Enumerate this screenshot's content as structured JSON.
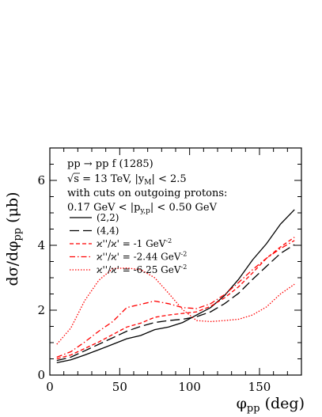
{
  "chart_data": {
    "type": "line",
    "xlabel": "φ_pp (deg)",
    "ylabel": "dσ/dφ_pp (μb)",
    "xlim": [
      0,
      180
    ],
    "ylim": [
      0,
      7
    ],
    "x_ticks": [
      0,
      50,
      100,
      150
    ],
    "y_ticks": [
      0,
      2,
      4,
      6
    ],
    "grid": false,
    "legend_position": "top-left",
    "annotations": [
      "pp → pp f (1285)",
      "√s = 13 TeV,  |y_M| < 2.5",
      "with cuts on outgoing protons:",
      "0.17 GeV < |p_y,p| < 0.50 GeV"
    ],
    "series": [
      {
        "name": "(2,2)",
        "color": "#000000",
        "style": "solid",
        "x": [
          5,
          15,
          25,
          35,
          45,
          55,
          65,
          75,
          85,
          95,
          105,
          115,
          125,
          135,
          145,
          155,
          165,
          175
        ],
        "values": [
          0.38,
          0.47,
          0.62,
          0.78,
          0.95,
          1.12,
          1.22,
          1.4,
          1.48,
          1.62,
          1.85,
          2.08,
          2.45,
          2.95,
          3.55,
          4.05,
          4.65,
          5.1
        ]
      },
      {
        "name": "(4,4)",
        "color": "#000000",
        "style": "longdash",
        "x": [
          5,
          15,
          25,
          35,
          45,
          55,
          65,
          75,
          85,
          95,
          105,
          115,
          125,
          135,
          145,
          155,
          165,
          175
        ],
        "values": [
          0.45,
          0.55,
          0.75,
          0.95,
          1.15,
          1.35,
          1.5,
          1.62,
          1.68,
          1.72,
          1.8,
          1.95,
          2.2,
          2.52,
          2.95,
          3.35,
          3.75,
          4.02
        ]
      },
      {
        "name": "ϰ''/ϰ' = -1 GeV^-2",
        "color": "#ff0000",
        "style": "dashed",
        "x": [
          5,
          15,
          25,
          35,
          45,
          55,
          65,
          75,
          85,
          95,
          105,
          115,
          125,
          135,
          145,
          155,
          165,
          175
        ],
        "values": [
          0.5,
          0.62,
          0.82,
          1.02,
          1.25,
          1.48,
          1.6,
          1.78,
          1.85,
          1.9,
          1.95,
          2.12,
          2.38,
          2.72,
          3.15,
          3.6,
          3.95,
          4.25
        ]
      },
      {
        "name": "ϰ''/ϰ' = -2.44 GeV^-2",
        "color": "#ff0000",
        "style": "dashdot",
        "x": [
          5,
          15,
          25,
          35,
          45,
          55,
          65,
          75,
          85,
          95,
          105,
          115,
          125,
          135,
          145,
          155,
          165,
          175
        ],
        "values": [
          0.55,
          0.72,
          1.02,
          1.35,
          1.65,
          2.08,
          2.18,
          2.28,
          2.2,
          2.08,
          2.05,
          2.2,
          2.48,
          2.85,
          3.25,
          3.6,
          3.9,
          4.15
        ]
      },
      {
        "name": "ϰ''/ϰ' = -6.25 GeV^-2",
        "color": "#ff0000",
        "style": "dotted",
        "x": [
          5,
          15,
          25,
          35,
          45,
          55,
          65,
          75,
          85,
          95,
          105,
          115,
          125,
          135,
          145,
          155,
          165,
          175
        ],
        "values": [
          0.95,
          1.45,
          2.3,
          2.92,
          3.28,
          3.3,
          3.25,
          3.0,
          2.52,
          2.02,
          1.68,
          1.65,
          1.68,
          1.72,
          1.85,
          2.1,
          2.5,
          2.8
        ]
      }
    ]
  },
  "labels": {
    "x_symbol": "φ",
    "x_subscript": "pp",
    "x_unit": " (deg)",
    "y_main": "dσ/dφ",
    "y_subscript": "pp",
    "y_unit": " (μb)",
    "annot": {
      "line1": "pp → pp f (1285)",
      "line2_sqrt": "√",
      "line2_a": "s = 13 TeV,  |y",
      "line2_sub": "M",
      "line2_b": "| < 2.5",
      "line3": "with cuts on outgoing protons:",
      "line4_a": "0.17 GeV < |p",
      "line4_sub": "y,p",
      "line4_b": "| < 0.50 GeV"
    },
    "legend": [
      {
        "label_a": "(2,2)",
        "sup": ""
      },
      {
        "label_a": "(4,4)",
        "sup": ""
      },
      {
        "label_a": "ϰ''/ϰ' = -1 GeV",
        "sup": "-2"
      },
      {
        "label_a": "ϰ''/ϰ' = -2.44 GeV",
        "sup": "-2"
      },
      {
        "label_a": "ϰ''/ϰ' = -6.25 GeV",
        "sup": "-2"
      }
    ]
  }
}
